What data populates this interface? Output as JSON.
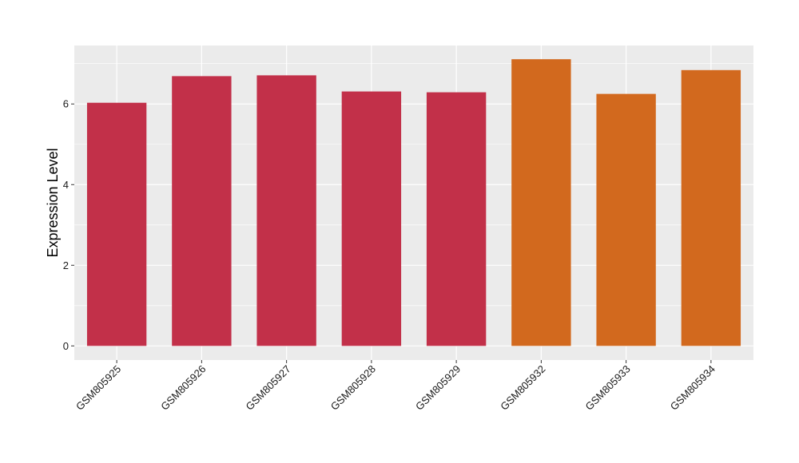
{
  "chart_data": {
    "type": "bar",
    "title": "",
    "xlabel": "",
    "ylabel": "Expression Level",
    "categories": [
      "GSM805925",
      "GSM805926",
      "GSM805927",
      "GSM805928",
      "GSM805929",
      "GSM805932",
      "GSM805933",
      "GSM805934"
    ],
    "values": [
      6.03,
      6.69,
      6.71,
      6.31,
      6.29,
      7.11,
      6.25,
      6.84
    ],
    "groups": [
      "group1",
      "group1",
      "group1",
      "group1",
      "group1",
      "group2",
      "group2",
      "group2"
    ],
    "colors": {
      "group1": "#c23049",
      "group2": "#d2691e"
    },
    "ylim": [
      -0.35,
      7.45
    ],
    "yticks": [
      0,
      2,
      4,
      6
    ],
    "grid": true,
    "panel_background": "#ebebeb",
    "grid_color": "#ffffff",
    "legend": "none"
  }
}
